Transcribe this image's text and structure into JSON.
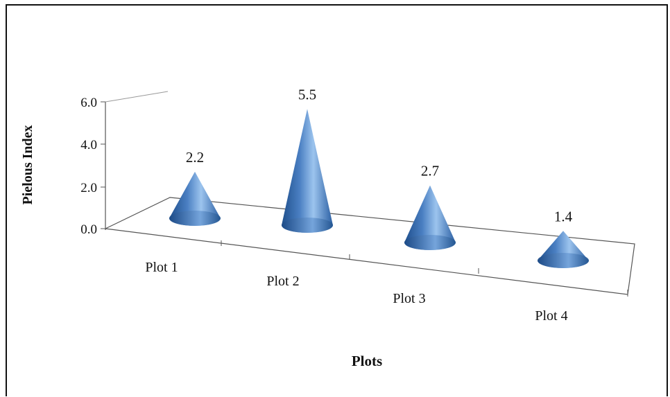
{
  "chart_data": {
    "type": "bar",
    "style": "3d-cone",
    "categories": [
      "Plot 1",
      "Plot 2",
      "Plot 3",
      "Plot 4"
    ],
    "values": [
      2.2,
      5.5,
      2.7,
      1.4
    ],
    "data_labels": [
      "2.2",
      "5.5",
      "2.7",
      "1.4"
    ],
    "xlabel": "Plots",
    "ylabel": "Pielous Index",
    "ylim": [
      0,
      6
    ],
    "yticks": [
      "0.0",
      "2.0",
      "4.0",
      "6.0"
    ],
    "grid": false,
    "legend": "none",
    "colors": {
      "cone_light": "#9cc4ee",
      "cone_mid": "#4a7fc2",
      "cone_dark": "#1f4f8c",
      "axis": "#555555"
    }
  }
}
